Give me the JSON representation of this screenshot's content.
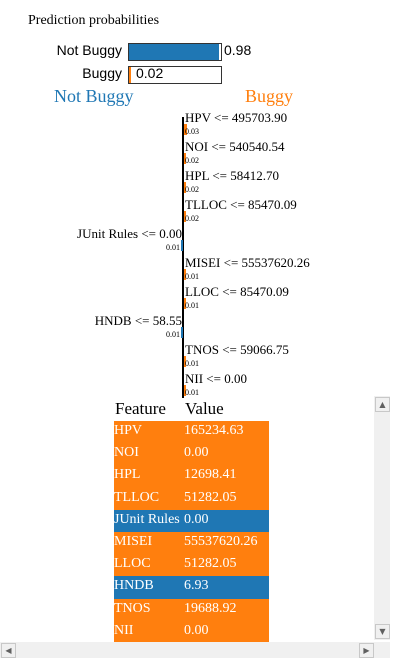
{
  "prediction_title": "Prediction probabilities",
  "probabilities": [
    {
      "label": "Not Buggy",
      "value": "0.98",
      "fraction": 0.98,
      "color": "#1f77b4"
    },
    {
      "label": "Buggy",
      "value": "0.02",
      "fraction": 0.02,
      "color": "#ff7f0e"
    }
  ],
  "class_names": {
    "left": "Not Buggy",
    "right": "Buggy"
  },
  "explanation": [
    {
      "label": "HPV <= 495703.90",
      "weight": "0.03",
      "w": 0.03,
      "side": "right"
    },
    {
      "label": "NOI <= 540540.54",
      "weight": "0.02",
      "w": 0.02,
      "side": "right"
    },
    {
      "label": "HPL <= 58412.70",
      "weight": "0.02",
      "w": 0.02,
      "side": "right"
    },
    {
      "label": "TLLOC <= 85470.09",
      "weight": "0.02",
      "w": 0.02,
      "side": "right"
    },
    {
      "label": "JUnit Rules <= 0.00",
      "weight": "0.01",
      "w": 0.01,
      "side": "left"
    },
    {
      "label": "MISEI <= 55537620.26",
      "weight": "0.01",
      "w": 0.01,
      "side": "right"
    },
    {
      "label": "LLOC <= 85470.09",
      "weight": "0.01",
      "w": 0.01,
      "side": "right"
    },
    {
      "label": "HNDB <= 58.55",
      "weight": "0.01",
      "w": 0.01,
      "side": "left"
    },
    {
      "label": "TNOS <= 59066.75",
      "weight": "0.01",
      "w": 0.01,
      "side": "right"
    },
    {
      "label": "NII <= 0.00",
      "weight": "0.01",
      "w": 0.01,
      "side": "right"
    }
  ],
  "table": {
    "headers": {
      "feature": "Feature",
      "value": "Value"
    },
    "rows": [
      {
        "feature": "HPV",
        "value": "165234.63",
        "class": "buggy"
      },
      {
        "feature": "NOI",
        "value": "0.00",
        "class": "buggy"
      },
      {
        "feature": "HPL",
        "value": "12698.41",
        "class": "buggy"
      },
      {
        "feature": "TLLOC",
        "value": "51282.05",
        "class": "buggy"
      },
      {
        "feature": "JUnit Rules",
        "value": "0.00",
        "class": "not-buggy"
      },
      {
        "feature": "MISEI",
        "value": "55537620.26",
        "class": "buggy"
      },
      {
        "feature": "LLOC",
        "value": "51282.05",
        "class": "buggy"
      },
      {
        "feature": "HNDB",
        "value": "6.93",
        "class": "not-buggy"
      },
      {
        "feature": "TNOS",
        "value": "19688.92",
        "class": "buggy"
      },
      {
        "feature": "NII",
        "value": "0.00",
        "class": "buggy"
      }
    ]
  },
  "colors": {
    "not_buggy": "#1f77b4",
    "buggy": "#ff7f0e"
  },
  "icons": {
    "scroll_up": "▲",
    "scroll_down": "▼",
    "scroll_left": "◀",
    "scroll_right": "▶"
  }
}
